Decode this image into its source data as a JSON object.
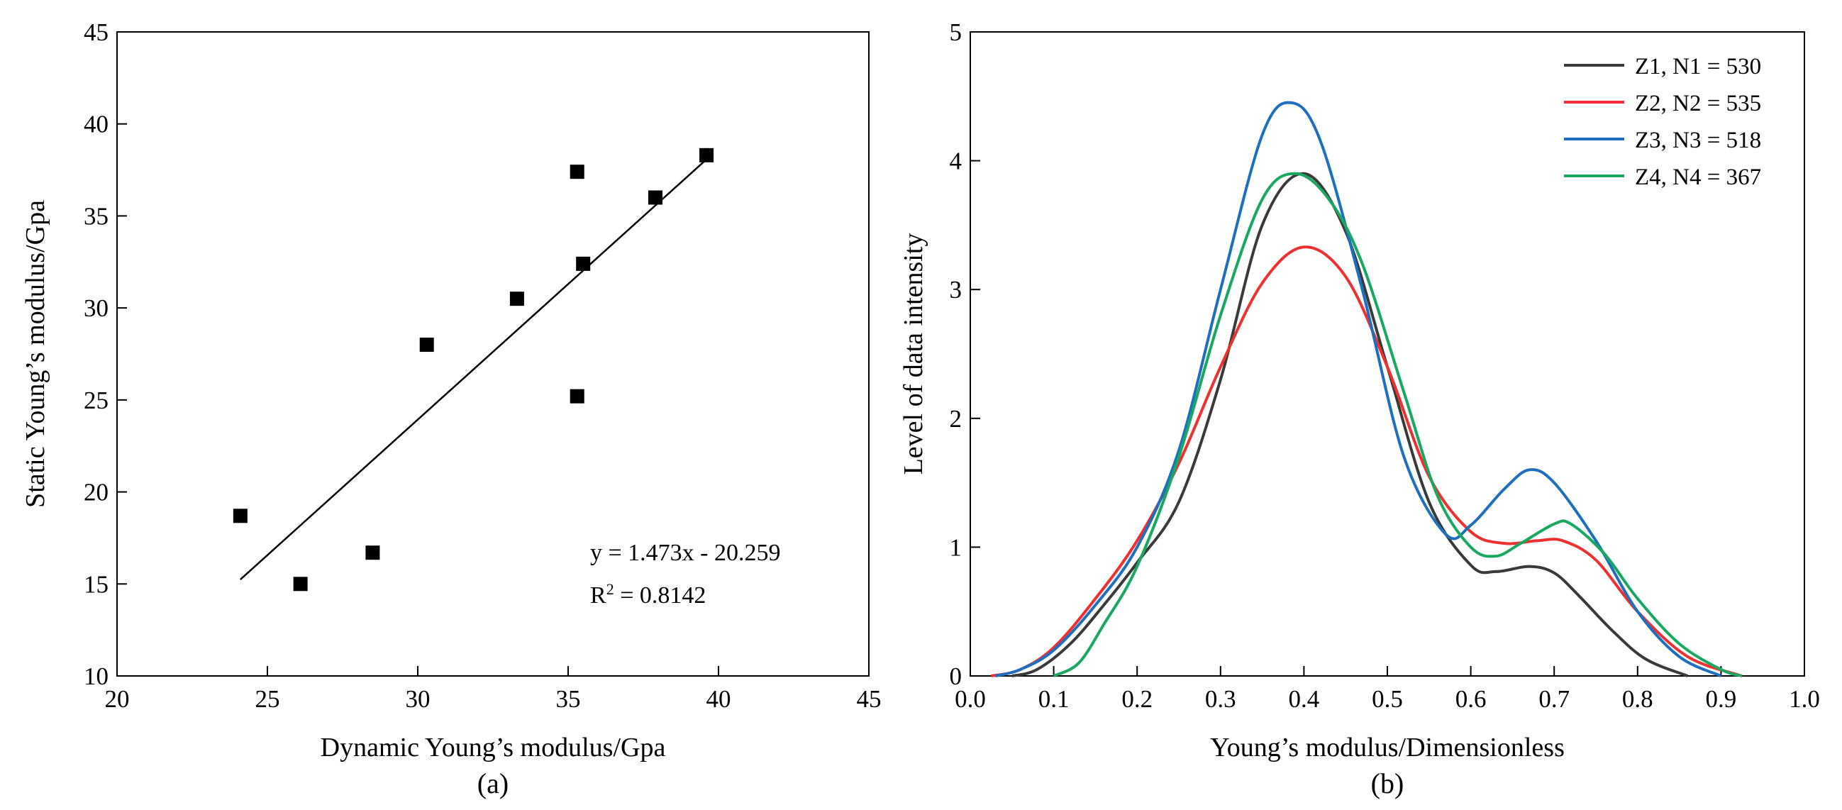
{
  "chart_data": [
    {
      "type": "scatter",
      "panel_label": "(a)",
      "xlabel": "Dynamic Young’s modulus/Gpa",
      "ylabel": "Static Young’s modulus/Gpa",
      "xlim": [
        20,
        45
      ],
      "ylim": [
        10,
        45
      ],
      "xticks": [
        "20",
        "25",
        "30",
        "35",
        "40",
        "45"
      ],
      "yticks": [
        "10",
        "15",
        "20",
        "25",
        "30",
        "35",
        "40",
        "45"
      ],
      "grid": false,
      "marker": "square",
      "points": [
        {
          "x": 24.1,
          "y": 18.7
        },
        {
          "x": 26.1,
          "y": 15.0
        },
        {
          "x": 28.5,
          "y": 16.7
        },
        {
          "x": 30.3,
          "y": 28.0
        },
        {
          "x": 33.3,
          "y": 30.5
        },
        {
          "x": 35.3,
          "y": 37.4
        },
        {
          "x": 35.3,
          "y": 25.2
        },
        {
          "x": 35.5,
          "y": 32.4
        },
        {
          "x": 37.9,
          "y": 36.0
        },
        {
          "x": 39.6,
          "y": 38.3
        }
      ],
      "fit_line": {
        "slope": 1.473,
        "intercept": -20.259,
        "x_range": [
          24.1,
          39.6
        ]
      },
      "equation": "y = 1.473x - 20.259",
      "r2_prefix": "R",
      "r2_superscript": "2",
      "r2_value": " = 0.8142"
    },
    {
      "type": "line",
      "panel_label": "(b)",
      "xlabel": "Young’s modulus/Dimensionless",
      "ylabel": "Level of data intensity",
      "xlim": [
        0.0,
        1.0
      ],
      "ylim": [
        0,
        5
      ],
      "xticks": [
        "0.0",
        "0.1",
        "0.2",
        "0.3",
        "0.4",
        "0.5",
        "0.6",
        "0.7",
        "0.8",
        "0.9",
        "1.0"
      ],
      "yticks": [
        "0",
        "1",
        "2",
        "3",
        "4",
        "5"
      ],
      "grid": false,
      "legend_position": "top-right",
      "series": [
        {
          "name": "Z1, N1 = 530",
          "color": "#3a3a3a",
          "points": [
            [
              0.05,
              0.0
            ],
            [
              0.08,
              0.05
            ],
            [
              0.12,
              0.25
            ],
            [
              0.16,
              0.55
            ],
            [
              0.2,
              0.88
            ],
            [
              0.25,
              1.35
            ],
            [
              0.3,
              2.3
            ],
            [
              0.35,
              3.5
            ],
            [
              0.4,
              3.9
            ],
            [
              0.45,
              3.45
            ],
            [
              0.5,
              2.4
            ],
            [
              0.55,
              1.35
            ],
            [
              0.6,
              0.86
            ],
            [
              0.63,
              0.81
            ],
            [
              0.67,
              0.85
            ],
            [
              0.7,
              0.8
            ],
            [
              0.73,
              0.62
            ],
            [
              0.77,
              0.35
            ],
            [
              0.81,
              0.13
            ],
            [
              0.86,
              0.0
            ]
          ]
        },
        {
          "name": "Z2, N2 = 535",
          "color": "#ee3030",
          "points": [
            [
              0.025,
              0.0
            ],
            [
              0.06,
              0.05
            ],
            [
              0.1,
              0.22
            ],
            [
              0.15,
              0.6
            ],
            [
              0.2,
              1.05
            ],
            [
              0.25,
              1.65
            ],
            [
              0.3,
              2.4
            ],
            [
              0.35,
              3.05
            ],
            [
              0.4,
              3.33
            ],
            [
              0.45,
              3.1
            ],
            [
              0.5,
              2.4
            ],
            [
              0.55,
              1.55
            ],
            [
              0.6,
              1.12
            ],
            [
              0.64,
              1.03
            ],
            [
              0.68,
              1.05
            ],
            [
              0.71,
              1.05
            ],
            [
              0.75,
              0.9
            ],
            [
              0.8,
              0.5
            ],
            [
              0.86,
              0.15
            ],
            [
              0.925,
              0.0
            ]
          ]
        },
        {
          "name": "Z3, N3 = 518",
          "color": "#1f6fbf",
          "points": [
            [
              0.03,
              0.0
            ],
            [
              0.06,
              0.05
            ],
            [
              0.1,
              0.2
            ],
            [
              0.15,
              0.55
            ],
            [
              0.2,
              1.0
            ],
            [
              0.25,
              1.75
            ],
            [
              0.3,
              3.0
            ],
            [
              0.35,
              4.2
            ],
            [
              0.385,
              4.45
            ],
            [
              0.42,
              4.15
            ],
            [
              0.47,
              3.0
            ],
            [
              0.52,
              1.7
            ],
            [
              0.57,
              1.1
            ],
            [
              0.6,
              1.17
            ],
            [
              0.64,
              1.45
            ],
            [
              0.67,
              1.6
            ],
            [
              0.7,
              1.5
            ],
            [
              0.75,
              1.05
            ],
            [
              0.8,
              0.5
            ],
            [
              0.85,
              0.15
            ],
            [
              0.9,
              0.0
            ]
          ]
        },
        {
          "name": "Z4, N4 = 367",
          "color": "#18a860",
          "points": [
            [
              0.1,
              0.0
            ],
            [
              0.13,
              0.1
            ],
            [
              0.16,
              0.4
            ],
            [
              0.2,
              0.85
            ],
            [
              0.25,
              1.7
            ],
            [
              0.3,
              2.8
            ],
            [
              0.35,
              3.7
            ],
            [
              0.39,
              3.9
            ],
            [
              0.43,
              3.7
            ],
            [
              0.47,
              3.2
            ],
            [
              0.52,
              2.2
            ],
            [
              0.56,
              1.4
            ],
            [
              0.6,
              1.0
            ],
            [
              0.63,
              0.93
            ],
            [
              0.66,
              1.03
            ],
            [
              0.7,
              1.18
            ],
            [
              0.72,
              1.18
            ],
            [
              0.76,
              0.95
            ],
            [
              0.8,
              0.6
            ],
            [
              0.85,
              0.25
            ],
            [
              0.9,
              0.05
            ],
            [
              0.925,
              0.0
            ]
          ]
        }
      ]
    }
  ]
}
